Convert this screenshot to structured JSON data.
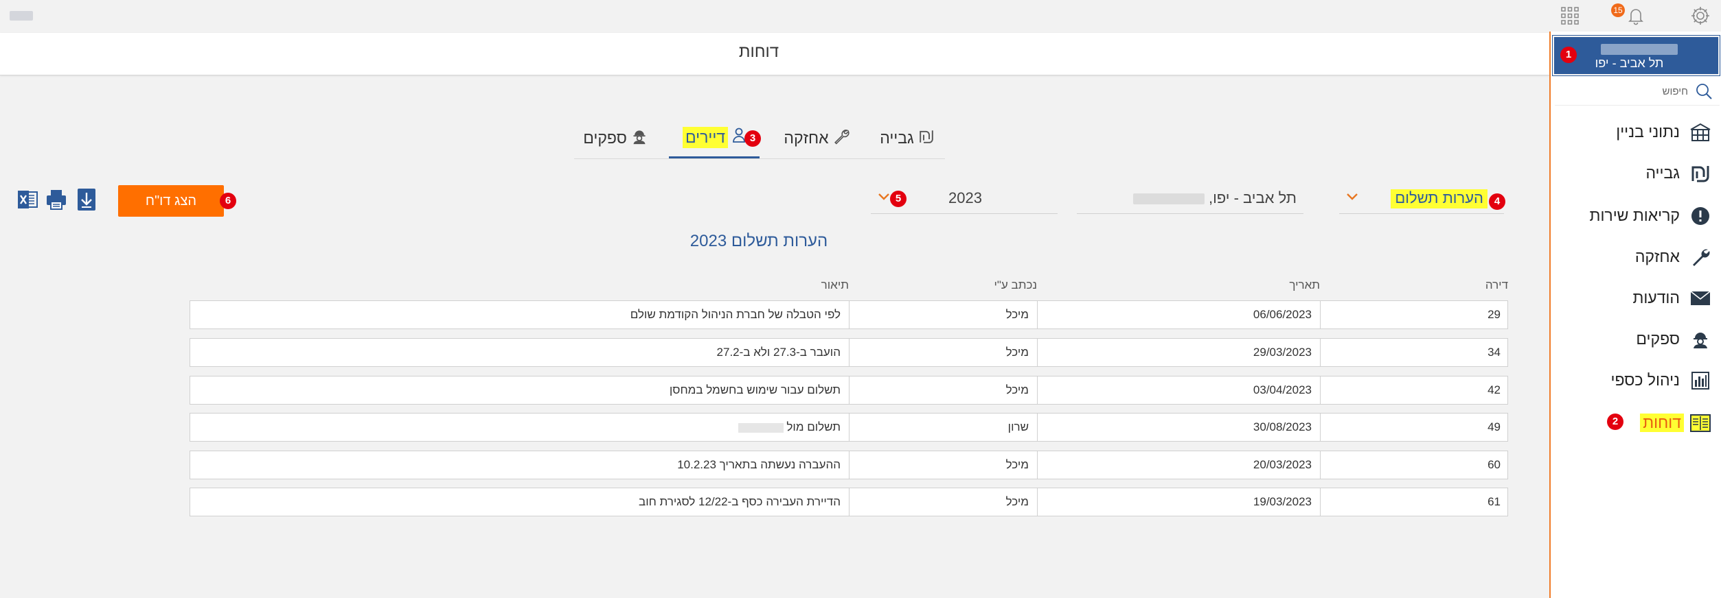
{
  "topbar": {
    "notifications_count": "15",
    "icons": [
      "settings-icon",
      "bell-icon",
      "apps-grid-icon"
    ]
  },
  "header": {
    "page_title": "דוחות"
  },
  "sidebar": {
    "building_city": "תל אביב - יפו",
    "search_placeholder": "חיפוש",
    "items": [
      {
        "label": "נתוני בניין",
        "icon": "building-icon"
      },
      {
        "label": "גבייה",
        "icon": "shekel-icon"
      },
      {
        "label": "קריאות שירות",
        "icon": "alert-icon"
      },
      {
        "label": "אחזקה",
        "icon": "wrench-icon"
      },
      {
        "label": "הודעות",
        "icon": "envelope-icon"
      },
      {
        "label": "ספקים",
        "icon": "worker-icon"
      },
      {
        "label": "ניהול כספי",
        "icon": "finance-chart-icon"
      },
      {
        "label": "דוחות",
        "icon": "reports-icon",
        "active": true
      }
    ]
  },
  "tabs": [
    {
      "label": "גבייה",
      "icon": "shekel-icon"
    },
    {
      "label": "אחזקה",
      "icon": "wrench-icon"
    },
    {
      "label": "דיירים",
      "icon": "person-icon",
      "active": true
    },
    {
      "label": "ספקים",
      "icon": "worker-icon"
    }
  ],
  "filters": {
    "report_type": "הערות תשלום",
    "building": "תל אביב - יפו",
    "building_separator": ",",
    "year": "2023"
  },
  "actions": {
    "show_report_label": "הצג דו\"ח",
    "icons": [
      "download-icon",
      "print-icon",
      "excel-icon"
    ]
  },
  "markers": [
    "1",
    "2",
    "3",
    "4",
    "5",
    "6"
  ],
  "report": {
    "title": "הערות תשלום 2023",
    "columns": {
      "apartment": "דירה",
      "date": "תאריך",
      "written_by": "נכתב ע\"י",
      "description": "תיאור"
    },
    "rows": [
      {
        "apartment": "29",
        "date": "06/06/2023",
        "written_by": "מיכל",
        "description": "לפי הטבלה של חברת הניהול הקודמת שולם"
      },
      {
        "apartment": "34",
        "date": "29/03/2023",
        "written_by": "מיכל",
        "description": "הועבר ב-27.3 ולא ב-27.2"
      },
      {
        "apartment": "42",
        "date": "03/04/2023",
        "written_by": "מיכל",
        "description": "תשלום עבור שימוש בחשמל במחסן"
      },
      {
        "apartment": "49",
        "date": "30/08/2023",
        "written_by": "שרון",
        "description": "תשלום מול"
      },
      {
        "apartment": "60",
        "date": "20/03/2023",
        "written_by": "מיכל",
        "description": "ההעברה נעשתה בתאריך 10.2.23"
      },
      {
        "apartment": "61",
        "date": "19/03/2023",
        "written_by": "מיכל",
        "description": "הדיירת העבירה כסף ב-12/22 לסגירת חוב"
      }
    ]
  },
  "colors": {
    "primary": "#2e5b9a",
    "accent": "#ff6f00",
    "highlight": "#ffff33",
    "marker": "#e3000f"
  }
}
